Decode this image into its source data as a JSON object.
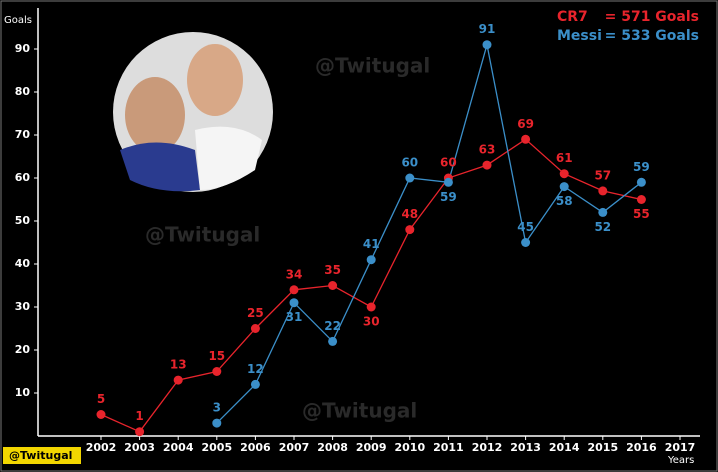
{
  "chart_data": {
    "type": "line",
    "y_label": "Goals",
    "x_label": "Years",
    "categories": [
      "2002",
      "2003",
      "2004",
      "2005",
      "2006",
      "2007",
      "2008",
      "2009",
      "2010",
      "2011",
      "2012",
      "2013",
      "2014",
      "2015",
      "2016",
      "2017"
    ],
    "series": [
      {
        "name": "CR7",
        "color": "#e8242c",
        "values": [
          5,
          1,
          13,
          15,
          25,
          34,
          35,
          30,
          48,
          60,
          63,
          69,
          61,
          57,
          55,
          null
        ]
      },
      {
        "name": "Messi",
        "color": "#3b8fc9",
        "values": [
          null,
          null,
          null,
          3,
          12,
          31,
          22,
          41,
          60,
          59,
          91,
          45,
          58,
          52,
          59,
          null
        ]
      }
    ],
    "legend_notes": [
      "= 571 Goals",
      "= 533 Goals"
    ],
    "watermark": "@Twitugal",
    "ylim": [
      0,
      100
    ],
    "yticks": [
      10,
      20,
      30,
      40,
      50,
      60,
      70,
      80,
      90
    ]
  }
}
